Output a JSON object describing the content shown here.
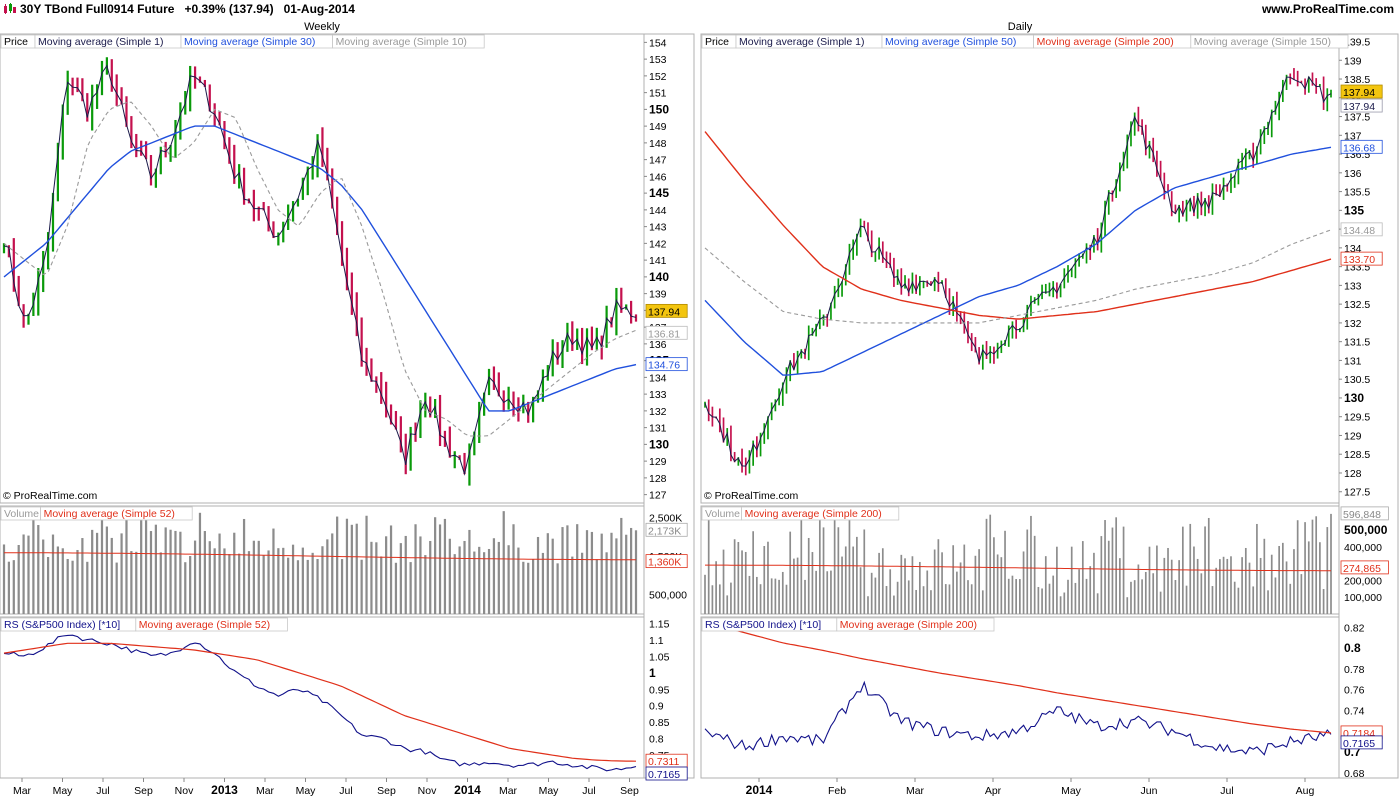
{
  "header": {
    "instrument": "30Y TBond Full0914 Future",
    "change": "+0.39% (137.94)",
    "date": "01-Aug-2014",
    "site": "www.ProRealTime.com"
  },
  "colors": {
    "up": "#0a9a0a",
    "down": "#c4114e",
    "price_line": "#1a1a4a",
    "ma_blue": "#2050dd",
    "ma_red": "#e0301a",
    "ma_grey": "#9a9a9a",
    "rs_line": "#11118a",
    "last_price_bg": "#f3c50f",
    "volume_bar": "#8c8c8c"
  },
  "panels": {
    "weekly": {
      "period": "Weekly",
      "copyright": "© ProRealTime.com",
      "price_legend": [
        "Price",
        "Moving average (Simple 1)",
        "Moving average (Simple 30)",
        "Moving average (Simple 10)"
      ],
      "volume_legend": [
        "Volume",
        "Moving average (Simple 52)"
      ],
      "rs_legend": [
        "RS (S&P500 Index) [*10]",
        "Moving average (Simple 52)"
      ],
      "price_axis": [
        "154",
        "153",
        "152",
        "151",
        "150",
        "149",
        "148",
        "147",
        "146",
        "145",
        "144",
        "143",
        "142",
        "141",
        "140",
        "139",
        "138",
        "137",
        "136",
        "135",
        "134",
        "133",
        "132",
        "131",
        "130",
        "129",
        "128",
        "127"
      ],
      "price_badges": [
        "137.94",
        "136.81",
        "134.76"
      ],
      "volume_axis": [
        "2,500K",
        "1,500K",
        "500,000"
      ],
      "volume_badges": [
        "2,173K",
        "1,360K"
      ],
      "rs_axis": [
        "1.15",
        "1.1",
        "1.05",
        "1",
        "0.95",
        "0.9",
        "0.85",
        "0.8",
        "0.75",
        "0.7"
      ],
      "rs_badges": [
        "0.7311",
        "0.7165"
      ],
      "x_axis": [
        "Mar",
        "May",
        "Jul",
        "Sep",
        "Nov",
        "2013",
        "Mar",
        "May",
        "Jul",
        "Sep",
        "Nov",
        "2014",
        "Mar",
        "May",
        "Jul",
        "Sep"
      ]
    },
    "daily": {
      "period": "Daily",
      "copyright": "© ProRealTime.com",
      "price_legend": [
        "Price",
        "Moving average (Simple 1)",
        "Moving average (Simple 50)",
        "Moving average (Simple 200)",
        "Moving average (Simple 150)"
      ],
      "volume_legend": [
        "Volume",
        "Moving average (Simple 200)"
      ],
      "rs_legend": [
        "RS (S&P500 Index) [*10]",
        "Moving average (Simple 200)"
      ],
      "price_axis": [
        "139.5",
        "139",
        "138.5",
        "138",
        "137.5",
        "137",
        "136.5",
        "136",
        "135.5",
        "135",
        "134.5",
        "134",
        "133.5",
        "133",
        "132.5",
        "132",
        "131.5",
        "131",
        "130.5",
        "130",
        "129.5",
        "129",
        "128.5",
        "128",
        "127.5"
      ],
      "price_badges": [
        "137.94",
        "137.94",
        "136.68",
        "134.48",
        "133.70"
      ],
      "volume_axis": [
        "500,000",
        "400,000",
        "300,000",
        "200,000",
        "100,000"
      ],
      "volume_badges": [
        "596,848",
        "274,865"
      ],
      "rs_axis": [
        "0.82",
        "0.8",
        "0.78",
        "0.76",
        "0.74",
        "0.72",
        "0.7",
        "0.68"
      ],
      "rs_badges": [
        "0.7184",
        "0.7165"
      ],
      "x_axis": [
        "2014",
        "Feb",
        "Mar",
        "Apr",
        "May",
        "Jun",
        "Jul",
        "Aug"
      ]
    }
  },
  "chart_data": [
    {
      "type": "line",
      "title": "Weekly",
      "x": [
        "2012-02",
        "2012-03",
        "2012-04",
        "2012-05",
        "2012-06",
        "2012-07",
        "2012-08",
        "2012-09",
        "2012-10",
        "2012-11",
        "2012-12",
        "2013-01",
        "2013-02",
        "2013-03",
        "2013-04",
        "2013-05",
        "2013-06",
        "2013-07",
        "2013-08",
        "2013-09",
        "2013-10",
        "2013-11",
        "2013-12",
        "2014-01",
        "2014-02",
        "2014-03",
        "2014-04",
        "2014-05",
        "2014-06",
        "2014-07",
        "2014-08"
      ],
      "series": [
        {
          "name": "Price",
          "values": [
            142.5,
            137,
            141,
            152,
            150,
            152.5,
            148,
            146,
            148.5,
            152,
            150,
            146,
            144,
            142.5,
            145,
            148,
            141.5,
            135,
            133,
            129,
            133,
            130,
            128.5,
            133.5,
            133,
            132,
            135,
            136.5,
            135.5,
            138,
            137.94
          ]
        },
        {
          "name": "Moving average (Simple 30)",
          "values": [
            140,
            141,
            142,
            143.5,
            145,
            146.5,
            147.5,
            148,
            148.5,
            149,
            149,
            148.5,
            148,
            147.5,
            147,
            146.5,
            145.5,
            144,
            142,
            140,
            138,
            136,
            134,
            132,
            132,
            132.5,
            133,
            133.5,
            134,
            134.5,
            134.76
          ]
        },
        {
          "name": "Moving average (Simple 10)",
          "values": [
            142,
            141,
            140,
            143,
            148,
            150,
            150.5,
            149,
            147,
            148,
            150,
            149.5,
            146.5,
            144,
            143,
            145,
            146,
            143,
            139,
            134.5,
            132,
            131.5,
            130.5,
            130.5,
            131.5,
            132.5,
            133.5,
            134.5,
            135.5,
            136.3,
            136.81
          ]
        },
        {
          "name": "RS (S&P500 Index) [*10]",
          "values": [
            1.06,
            1.05,
            1.08,
            1.12,
            1.1,
            1.09,
            1.07,
            1.05,
            1.06,
            1.1,
            1.06,
            1.0,
            0.96,
            0.93,
            0.95,
            0.92,
            0.87,
            0.81,
            0.8,
            0.77,
            0.76,
            0.73,
            0.72,
            0.73,
            0.72,
            0.72,
            0.73,
            0.72,
            0.71,
            0.705,
            0.7165
          ]
        },
        {
          "name": "RS Moving average (Simple 52)",
          "values": [
            1.06,
            1.07,
            1.08,
            1.09,
            1.09,
            1.09,
            1.085,
            1.08,
            1.075,
            1.07,
            1.06,
            1.05,
            1.04,
            1.02,
            1.0,
            0.98,
            0.96,
            0.93,
            0.9,
            0.87,
            0.85,
            0.83,
            0.81,
            0.79,
            0.77,
            0.76,
            0.75,
            0.74,
            0.735,
            0.732,
            0.7311
          ]
        }
      ],
      "volume": {
        "unit": "contracts",
        "bar_range": [
          1300000,
          2700000
        ],
        "ma_52": 1360000,
        "last": 2173000
      },
      "ylim": [
        126.5,
        154.5
      ],
      "rs_ylim": [
        0.68,
        1.17
      ]
    },
    {
      "type": "line",
      "title": "Daily",
      "x": [
        "2013-12-01",
        "2013-12-15",
        "2014-01-01",
        "2014-01-15",
        "2014-02-01",
        "2014-02-15",
        "2014-03-01",
        "2014-03-15",
        "2014-04-01",
        "2014-04-15",
        "2014-05-01",
        "2014-05-15",
        "2014-06-01",
        "2014-06-15",
        "2014-07-01",
        "2014-07-15",
        "2014-08-01"
      ],
      "series": [
        {
          "name": "Price",
          "values": [
            130,
            128,
            130.5,
            132,
            134.5,
            133,
            133.2,
            131,
            132,
            133,
            134.2,
            137.5,
            135,
            135.3,
            136.5,
            138.7,
            137.94
          ]
        },
        {
          "name": "Moving average (Simple 50)",
          "values": [
            132.6,
            131.5,
            130.6,
            130.7,
            131.2,
            131.7,
            132.2,
            132.7,
            133,
            133.5,
            134.1,
            135,
            135.6,
            135.9,
            136.2,
            136.5,
            136.68
          ]
        },
        {
          "name": "Moving average (Simple 200)",
          "values": [
            137.1,
            135.8,
            134.6,
            133.5,
            132.9,
            132.6,
            132.4,
            132.2,
            132.1,
            132.2,
            132.3,
            132.5,
            132.7,
            132.9,
            133.1,
            133.4,
            133.7
          ]
        },
        {
          "name": "Moving average (Simple 150)",
          "values": [
            134,
            133.1,
            132.3,
            132.1,
            132,
            132,
            132,
            132,
            132.2,
            132.4,
            132.6,
            132.9,
            133.1,
            133.3,
            133.6,
            134.1,
            134.48
          ]
        },
        {
          "name": "RS (S&P500 Index) [*10]",
          "values": [
            0.72,
            0.705,
            0.715,
            0.71,
            0.765,
            0.73,
            0.72,
            0.715,
            0.72,
            0.74,
            0.725,
            0.73,
            0.72,
            0.705,
            0.7,
            0.71,
            0.7165
          ]
        },
        {
          "name": "RS Moving average (Simple 200)",
          "values": [
            0.825,
            0.815,
            0.805,
            0.798,
            0.79,
            0.783,
            0.776,
            0.77,
            0.764,
            0.757,
            0.751,
            0.745,
            0.739,
            0.733,
            0.727,
            0.722,
            0.7184
          ]
        }
      ],
      "volume": {
        "unit": "contracts",
        "bar_range": [
          100000,
          596848
        ],
        "ma_200": 274865,
        "last": 596848
      },
      "ylim": [
        127.2,
        139.7
      ],
      "rs_ylim": [
        0.675,
        0.83
      ]
    }
  ]
}
